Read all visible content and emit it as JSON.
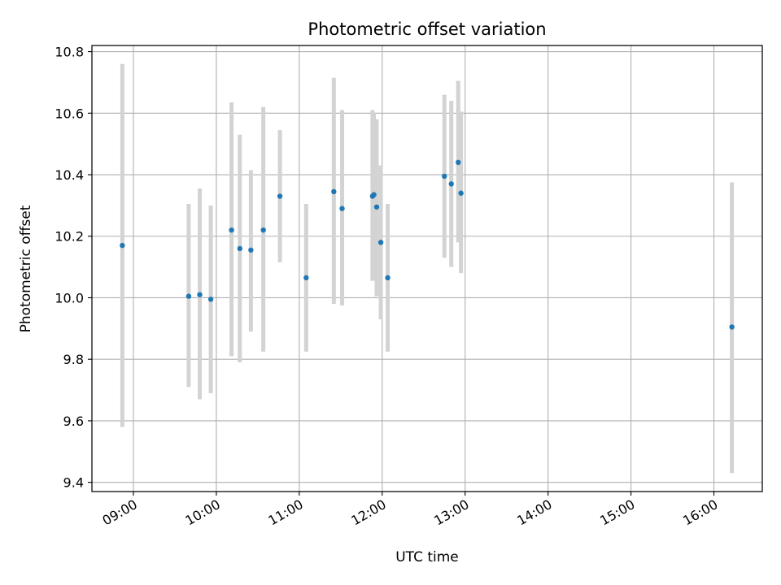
{
  "chart_data": {
    "type": "scatter",
    "title": "Photometric offset variation",
    "xlabel": "UTC time",
    "ylabel": "Photometric offset",
    "xlim": [
      "08:30",
      "16:35"
    ],
    "ylim": [
      9.37,
      10.82
    ],
    "x_ticks": [
      "09:00",
      "10:00",
      "11:00",
      "12:00",
      "13:00",
      "14:00",
      "15:00",
      "16:00"
    ],
    "y_ticks": [
      9.4,
      9.6,
      9.8,
      10.0,
      10.2,
      10.4,
      10.6,
      10.8
    ],
    "y_tick_labels": [
      "9.4",
      "9.6",
      "9.8",
      "10.0",
      "10.2",
      "10.4",
      "10.6",
      "10.8"
    ],
    "grid": true,
    "marker_color": "#1f77b4",
    "errorbar_color": "#d3d3d3",
    "points": [
      {
        "t": "08:52",
        "y": 10.17,
        "lo": 9.58,
        "hi": 10.76
      },
      {
        "t": "09:40",
        "y": 10.005,
        "lo": 9.71,
        "hi": 10.305
      },
      {
        "t": "09:48",
        "y": 10.01,
        "lo": 9.67,
        "hi": 10.355
      },
      {
        "t": "09:56",
        "y": 9.995,
        "lo": 9.69,
        "hi": 10.3
      },
      {
        "t": "10:11",
        "y": 10.22,
        "lo": 9.81,
        "hi": 10.635
      },
      {
        "t": "10:17",
        "y": 10.16,
        "lo": 9.79,
        "hi": 10.53
      },
      {
        "t": "10:25",
        "y": 10.155,
        "lo": 9.89,
        "hi": 10.415
      },
      {
        "t": "10:34",
        "y": 10.22,
        "lo": 9.825,
        "hi": 10.62
      },
      {
        "t": "10:46",
        "y": 10.33,
        "lo": 10.115,
        "hi": 10.545
      },
      {
        "t": "11:05",
        "y": 10.065,
        "lo": 9.825,
        "hi": 10.305
      },
      {
        "t": "11:25",
        "y": 10.345,
        "lo": 9.98,
        "hi": 10.715
      },
      {
        "t": "11:31",
        "y": 10.29,
        "lo": 9.975,
        "hi": 10.61
      },
      {
        "t": "11:53",
        "y": 10.33,
        "lo": 10.055,
        "hi": 10.61
      },
      {
        "t": "11:54",
        "y": 10.335,
        "lo": 10.065,
        "hi": 10.6
      },
      {
        "t": "11:56",
        "y": 10.295,
        "lo": 10.005,
        "hi": 10.58
      },
      {
        "t": "11:59",
        "y": 10.18,
        "lo": 9.93,
        "hi": 10.43
      },
      {
        "t": "12:04",
        "y": 10.065,
        "lo": 9.825,
        "hi": 10.305
      },
      {
        "t": "12:45",
        "y": 10.395,
        "lo": 10.13,
        "hi": 10.66
      },
      {
        "t": "12:50",
        "y": 10.37,
        "lo": 10.1,
        "hi": 10.64
      },
      {
        "t": "12:55",
        "y": 10.44,
        "lo": 10.18,
        "hi": 10.705
      },
      {
        "t": "12:57",
        "y": 10.34,
        "lo": 10.08,
        "hi": 10.605
      },
      {
        "t": "16:13",
        "y": 9.905,
        "lo": 9.43,
        "hi": 10.375
      }
    ]
  }
}
